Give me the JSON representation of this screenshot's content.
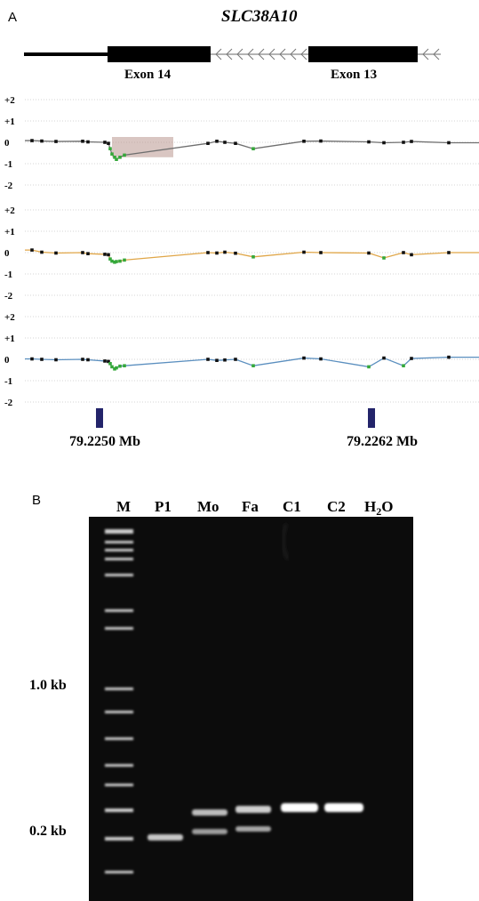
{
  "panel_a": {
    "letter": "A",
    "gene": "SLC38A10",
    "exons": [
      {
        "label": "Exon 14",
        "filled": true
      },
      {
        "label": "Exon 13",
        "filled": true
      }
    ],
    "y_ticks": [
      "+2",
      "+1",
      "0",
      "-1",
      "-2"
    ],
    "markers": [
      {
        "label": "79.2250 Mb"
      },
      {
        "label": "79.2262 Mb"
      }
    ],
    "tracks": [
      {
        "line_color": "#6f6f6f",
        "highlight": true
      },
      {
        "line_color": "#e0a648",
        "highlight": false
      },
      {
        "line_color": "#5b8fbf",
        "highlight": false
      }
    ],
    "chart_data": {
      "type": "scatter",
      "ylim": [
        -2,
        2
      ],
      "yticks": [
        "+2",
        "+1",
        "0",
        "-1",
        "-2"
      ],
      "series": [
        {
          "points": [
            [
              0,
              0.08
            ],
            [
              1,
              0.06
            ],
            [
              2,
              0.04
            ],
            [
              3,
              0.05
            ],
            [
              4,
              0.02
            ],
            [
              5,
              0.0
            ],
            [
              6,
              -0.05
            ],
            [
              7,
              -0.3
            ],
            [
              8,
              -0.55
            ],
            [
              9,
              -0.7
            ],
            [
              10,
              -0.8
            ],
            [
              11,
              -0.7
            ],
            [
              12,
              -0.6
            ],
            [
              13,
              -0.05
            ],
            [
              14,
              0.05
            ],
            [
              15,
              0.0
            ],
            [
              16,
              -0.05
            ],
            [
              17,
              -0.3
            ],
            [
              18,
              0.05
            ],
            [
              19,
              0.06
            ],
            [
              20,
              0.02
            ],
            [
              21,
              -0.02
            ],
            [
              22,
              0.0
            ],
            [
              23,
              0.04
            ],
            [
              24,
              -0.02
            ]
          ]
        },
        {
          "points": [
            [
              0,
              0.12
            ],
            [
              1,
              0.02
            ],
            [
              2,
              -0.02
            ],
            [
              3,
              0.0
            ],
            [
              4,
              -0.05
            ],
            [
              5,
              -0.08
            ],
            [
              6,
              -0.1
            ],
            [
              7,
              -0.3
            ],
            [
              8,
              -0.4
            ],
            [
              9,
              -0.45
            ],
            [
              10,
              -0.42
            ],
            [
              11,
              -0.4
            ],
            [
              12,
              -0.35
            ],
            [
              13,
              0.0
            ],
            [
              14,
              -0.02
            ],
            [
              15,
              0.02
            ],
            [
              16,
              -0.03
            ],
            [
              17,
              -0.2
            ],
            [
              18,
              0.02
            ],
            [
              19,
              0.0
            ],
            [
              20,
              -0.02
            ],
            [
              21,
              -0.25
            ],
            [
              22,
              0.0
            ],
            [
              23,
              -0.1
            ],
            [
              24,
              0.0
            ]
          ]
        },
        {
          "points": [
            [
              0,
              0.02
            ],
            [
              1,
              0.0
            ],
            [
              2,
              -0.02
            ],
            [
              3,
              0.0
            ],
            [
              4,
              -0.02
            ],
            [
              5,
              -0.08
            ],
            [
              6,
              -0.1
            ],
            [
              7,
              -0.2
            ],
            [
              8,
              -0.35
            ],
            [
              9,
              -0.45
            ],
            [
              10,
              -0.4
            ],
            [
              11,
              -0.32
            ],
            [
              12,
              -0.3
            ],
            [
              13,
              0.0
            ],
            [
              14,
              -0.05
            ],
            [
              15,
              -0.03
            ],
            [
              16,
              0.0
            ],
            [
              17,
              -0.3
            ],
            [
              18,
              0.06
            ],
            [
              19,
              0.02
            ],
            [
              20,
              -0.35
            ],
            [
              21,
              0.06
            ],
            [
              22,
              -0.3
            ],
            [
              23,
              0.04
            ],
            [
              24,
              0.1
            ]
          ]
        }
      ]
    }
  },
  "panel_b": {
    "letter": "B",
    "lanes": [
      "M",
      "P1",
      "Mo",
      "Fa",
      "C1",
      "C2",
      "H2O"
    ],
    "size_markers": [
      "1.0 kb",
      "0.2 kb"
    ],
    "colors": {
      "gel": "#0c0c0c",
      "band": "#ffffff"
    }
  }
}
